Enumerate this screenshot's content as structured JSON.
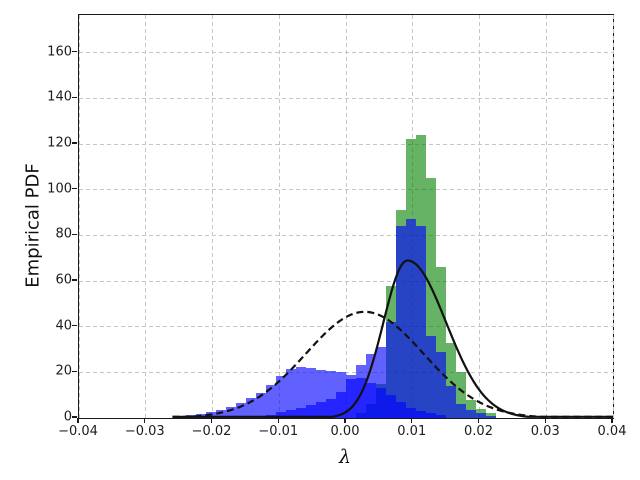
{
  "chart_data": {
    "type": "bar",
    "subtype": "overlaid-histograms-with-fit-curves",
    "title": "",
    "xlabel": "λ",
    "ylabel": "Empirical PDF",
    "xlim": [
      -0.04,
      0.04
    ],
    "ylim": [
      0,
      176.5
    ],
    "grid": "dashed",
    "grid_color": "#c6c6c6",
    "legend_position": "none",
    "x_ticks": {
      "values": [
        -0.04,
        -0.03,
        -0.02,
        -0.01,
        0.0,
        0.01,
        0.02,
        0.03,
        0.04
      ],
      "labels": [
        "−0.04",
        "−0.03",
        "−0.02",
        "−0.01",
        "0.00",
        "0.01",
        "0.02",
        "0.03",
        "0.04"
      ]
    },
    "y_ticks": {
      "values": [
        0,
        20,
        40,
        60,
        80,
        100,
        120,
        140,
        160
      ],
      "labels": [
        "0",
        "20",
        "40",
        "60",
        "80",
        "100",
        "120",
        "140",
        "160"
      ]
    },
    "bin_width": 0.0015,
    "series": [
      {
        "name": "green-histogram",
        "kind": "histogram",
        "color": "rgba(0,128,0,0.6)",
        "bin_left_edges": [
          0.0015,
          0.003,
          0.0045,
          0.006,
          0.0075,
          0.009,
          0.0105,
          0.012,
          0.0135,
          0.015,
          0.0165,
          0.018,
          0.0195,
          0.021
        ],
        "values": [
          2,
          6,
          15,
          58,
          91,
          122,
          124,
          105,
          66,
          33,
          20,
          8,
          4,
          2
        ]
      },
      {
        "name": "broad-blue-histogram",
        "kind": "histogram",
        "color": "rgba(0,0,255,0.62)",
        "bin_left_edges": [
          -0.0255,
          -0.024,
          -0.0225,
          -0.021,
          -0.0195,
          -0.018,
          -0.0165,
          -0.015,
          -0.0135,
          -0.012,
          -0.0105,
          -0.009,
          -0.0075,
          -0.006,
          -0.0045,
          -0.003,
          -0.0015,
          0.0,
          0.0015,
          0.003,
          0.0045,
          0.006,
          0.0075,
          0.009,
          0.0105,
          0.012,
          0.0135
        ],
        "values": [
          0.7,
          1.2,
          1.8,
          2.6,
          3.6,
          5,
          6.6,
          8.6,
          11,
          14.5,
          18.5,
          21.5,
          22.5,
          22,
          21,
          20.5,
          20,
          19,
          17.5,
          15.5,
          13,
          10,
          7,
          4.5,
          3,
          2,
          1.2
        ]
      },
      {
        "name": "sharp-blue-histogram",
        "kind": "histogram",
        "color": "rgba(0,0,255,0.62)",
        "bin_left_edges": [
          -0.012,
          -0.0105,
          -0.009,
          -0.0075,
          -0.006,
          -0.0045,
          -0.003,
          -0.0015,
          0.0,
          0.0015,
          0.003,
          0.0045,
          0.006,
          0.0075,
          0.009,
          0.0105,
          0.012,
          0.0135,
          0.015,
          0.0165,
          0.018,
          0.0195,
          0.021
        ],
        "values": [
          1.5,
          2.5,
          3.5,
          4.5,
          5.5,
          7,
          8.5,
          11.5,
          17,
          23,
          28,
          31,
          42,
          84,
          87,
          84,
          36,
          29,
          14,
          6,
          3.4,
          2,
          1
        ]
      },
      {
        "name": "solid-fit-curve",
        "kind": "gaussian-curve",
        "color": "#111111",
        "dash": "",
        "line_width": 2.2,
        "peak": 69,
        "mu": 0.0092,
        "sigma_left": 0.0036,
        "sigma_right": 0.0058,
        "x_start": -0.026,
        "x_end": 0.04
      },
      {
        "name": "dashed-fit-curve",
        "kind": "gaussian-curve",
        "color": "#111111",
        "dash": "7 4",
        "line_width": 2.2,
        "peak": 46.5,
        "mu": 0.0028,
        "sigma_left": 0.0088,
        "sigma_right": 0.0088,
        "x_start": -0.026,
        "x_end": 0.04
      }
    ]
  }
}
